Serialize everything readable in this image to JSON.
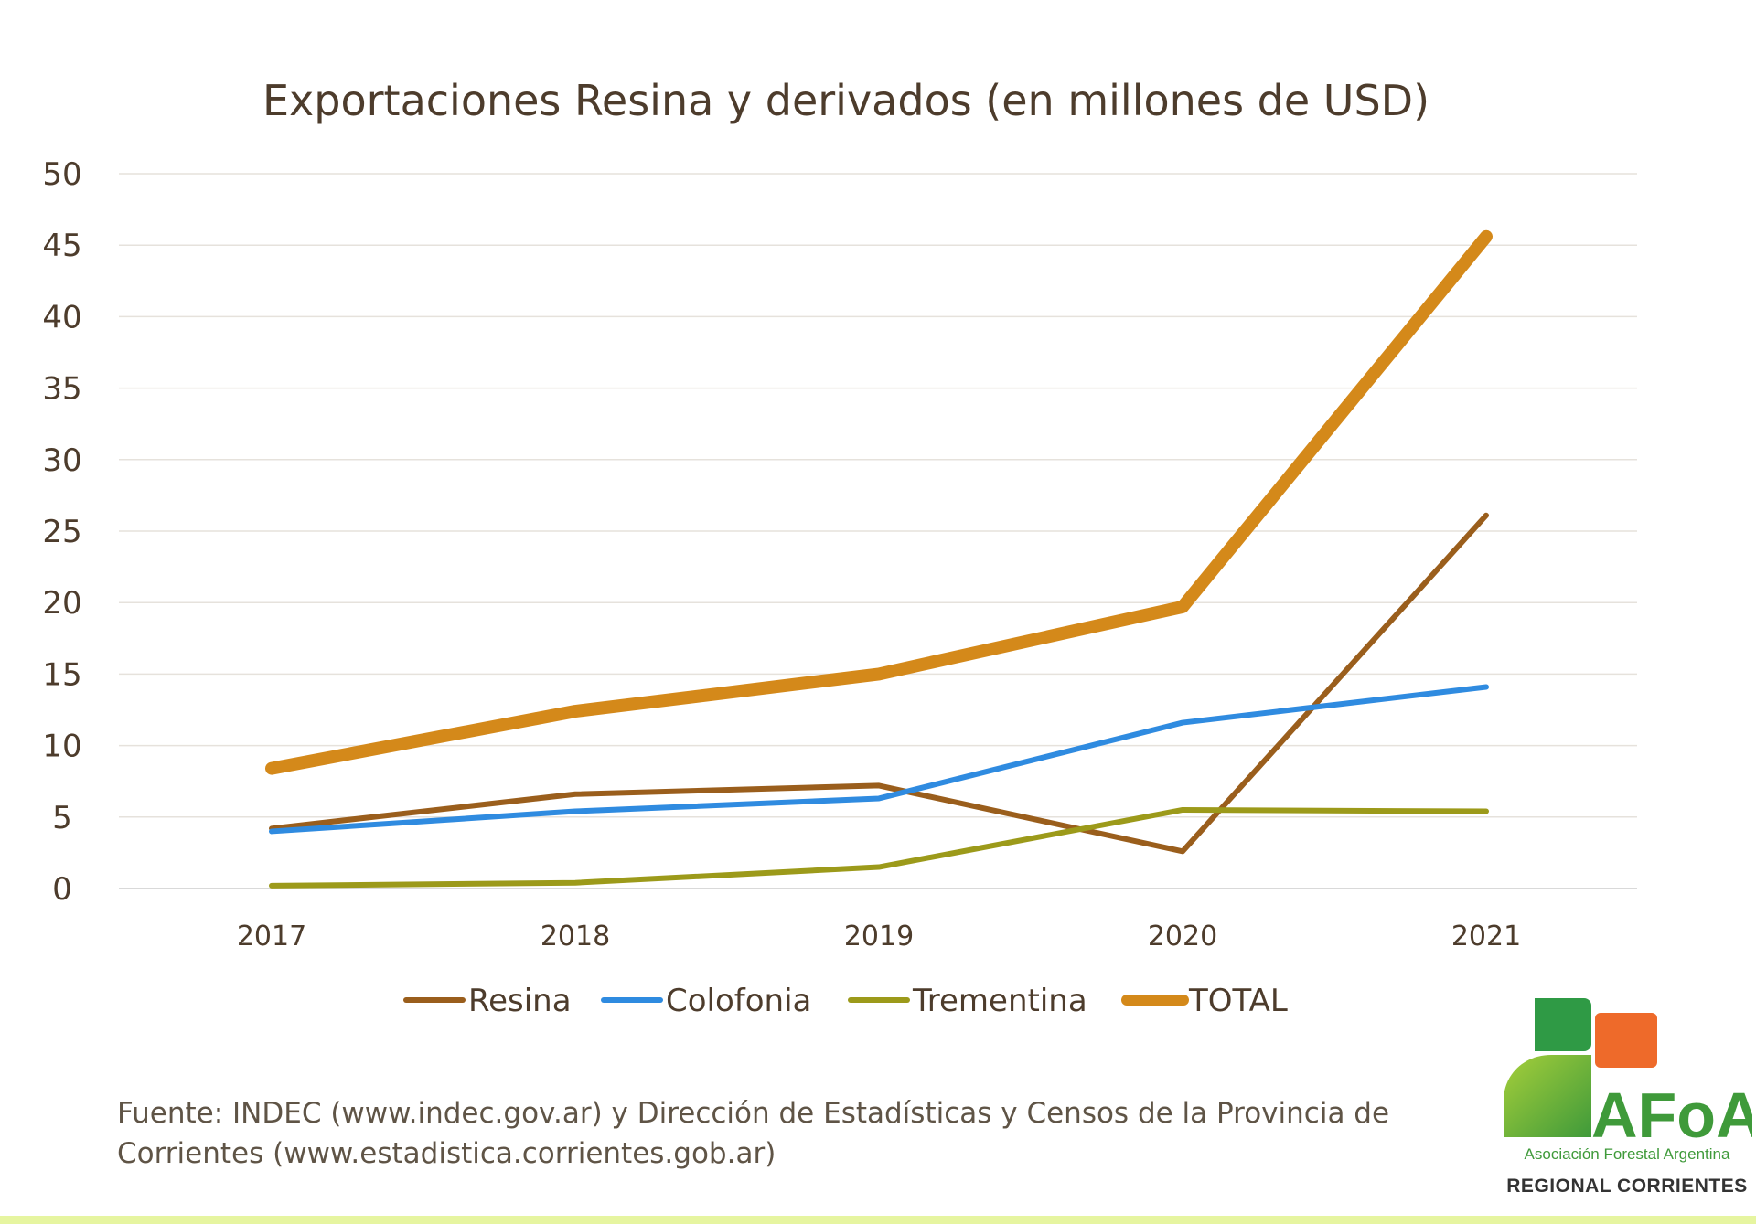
{
  "chart_data": {
    "type": "line",
    "title": "Exportaciones Resina y derivados  (en millones de USD)",
    "xlabel": "",
    "ylabel": "",
    "categories": [
      "2017",
      "2018",
      "2019",
      "2020",
      "2021"
    ],
    "ylim": [
      0,
      50
    ],
    "yticks": [
      "0",
      "5",
      "10",
      "15",
      "20",
      "25",
      "30",
      "35",
      "40",
      "45",
      "50"
    ],
    "grid": true,
    "legend_position": "bottom",
    "series": [
      {
        "name": "Resina",
        "values": [
          4.2,
          6.6,
          7.2,
          2.6,
          26.1
        ],
        "color": "#9a5e1c",
        "width": 6
      },
      {
        "name": "Colofonia",
        "values": [
          4.0,
          5.4,
          6.3,
          11.6,
          14.1
        ],
        "color": "#2f8be0",
        "width": 6
      },
      {
        "name": "Trementina",
        "values": [
          0.2,
          0.4,
          1.5,
          5.5,
          5.4
        ],
        "color": "#9c9a1a",
        "width": 6
      },
      {
        "name": "TOTAL",
        "values": [
          8.4,
          12.4,
          15.0,
          19.7,
          45.6
        ],
        "color": "#d4891a",
        "width": 14
      }
    ]
  },
  "source": {
    "text": "Fuente:  INDEC (www.indec.gov.ar) y Dirección de Estadísticas y Censos de la Provincia de Corrientes (www.estadistica.corrientes.gob.ar)"
  },
  "logo": {
    "wordmark": "AFoA",
    "subtitle": "Asociación Forestal Argentina",
    "regional": "REGIONAL CORRIENTES",
    "green": "#3f9a3a",
    "orange": "#ee6a2a"
  }
}
